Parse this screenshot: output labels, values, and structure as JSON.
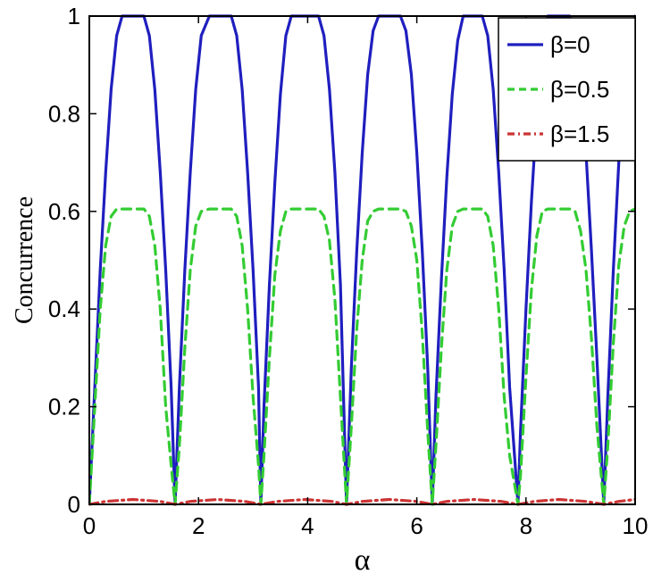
{
  "chart_data": {
    "type": "line",
    "title": "",
    "xlabel": "α",
    "ylabel": "Concurrence",
    "xlim": [
      0,
      10
    ],
    "ylim": [
      0,
      1
    ],
    "xticks": [
      0,
      2,
      4,
      6,
      8,
      10
    ],
    "yticks": [
      0,
      0.2,
      0.4,
      0.6,
      0.8,
      1
    ],
    "xtick_labels": [
      "0",
      "2",
      "4",
      "6",
      "8",
      "10"
    ],
    "ytick_labels": [
      "0",
      "0.2",
      "0.4",
      "0.6",
      "0.8",
      "1"
    ],
    "grid": false,
    "legend_position": "top-right",
    "series": [
      {
        "name": "β=0",
        "color": "#1f1fbf",
        "dash": "solid",
        "x": [
          0,
          0.1,
          0.2,
          0.3,
          0.4,
          0.5,
          0.6,
          0.8,
          1.0,
          1.1,
          1.2,
          1.3,
          1.4,
          1.5,
          1.571,
          1.65,
          1.75,
          1.85,
          1.95,
          2.05,
          2.2,
          2.4,
          2.6,
          2.7,
          2.8,
          2.9,
          3.0,
          3.1,
          3.142,
          3.2,
          3.3,
          3.4,
          3.5,
          3.6,
          3.7,
          3.8,
          4.0,
          4.2,
          4.3,
          4.4,
          4.5,
          4.6,
          4.712,
          4.8,
          4.9,
          5.0,
          5.1,
          5.2,
          5.3,
          5.5,
          5.7,
          5.8,
          5.9,
          6.0,
          6.1,
          6.2,
          6.283,
          6.35,
          6.45,
          6.55,
          6.65,
          6.75,
          6.85,
          7.0,
          7.2,
          7.3,
          7.4,
          7.5,
          7.6,
          7.7,
          7.854,
          7.9,
          8.0,
          8.1,
          8.2,
          8.3,
          8.4,
          8.6,
          8.8,
          8.9,
          9.0,
          9.1,
          9.2,
          9.3,
          9.425,
          9.5,
          9.6,
          9.7,
          9.8,
          9.9,
          10.0
        ],
        "y": [
          0,
          0.24,
          0.48,
          0.68,
          0.85,
          0.96,
          1.0,
          1.0,
          1.0,
          0.96,
          0.85,
          0.68,
          0.48,
          0.24,
          0,
          0.24,
          0.48,
          0.68,
          0.85,
          0.96,
          1.0,
          1.0,
          1.0,
          0.96,
          0.85,
          0.68,
          0.48,
          0.24,
          0,
          0.2,
          0.45,
          0.66,
          0.84,
          0.96,
          1.0,
          1.0,
          1.0,
          1.0,
          0.96,
          0.85,
          0.68,
          0.45,
          0,
          0.28,
          0.52,
          0.72,
          0.88,
          0.97,
          1.0,
          1.0,
          1.0,
          0.97,
          0.88,
          0.72,
          0.52,
          0.28,
          0,
          0.22,
          0.46,
          0.67,
          0.84,
          0.95,
          1.0,
          1.0,
          1.0,
          0.96,
          0.85,
          0.68,
          0.48,
          0.24,
          0,
          0.15,
          0.4,
          0.62,
          0.8,
          0.93,
          1.0,
          1.0,
          1.0,
          0.96,
          0.88,
          0.72,
          0.52,
          0.3,
          0,
          0.22,
          0.48,
          0.7,
          0.87,
          0.97,
          1.0
        ]
      },
      {
        "name": "β=0.5",
        "color": "#33cc33",
        "dash": "dashed",
        "x": [
          0,
          0.1,
          0.2,
          0.3,
          0.4,
          0.5,
          0.6,
          0.8,
          1.0,
          1.1,
          1.2,
          1.3,
          1.4,
          1.5,
          1.571,
          1.65,
          1.75,
          1.85,
          1.95,
          2.05,
          2.2,
          2.4,
          2.6,
          2.7,
          2.8,
          2.9,
          3.0,
          3.1,
          3.142,
          3.2,
          3.3,
          3.4,
          3.5,
          3.6,
          3.7,
          3.8,
          4.0,
          4.2,
          4.3,
          4.4,
          4.5,
          4.6,
          4.712,
          4.8,
          4.9,
          5.0,
          5.1,
          5.2,
          5.3,
          5.5,
          5.7,
          5.8,
          5.9,
          6.0,
          6.1,
          6.2,
          6.283,
          6.35,
          6.45,
          6.55,
          6.65,
          6.75,
          6.85,
          7.0,
          7.2,
          7.3,
          7.4,
          7.5,
          7.6,
          7.7,
          7.854,
          7.9,
          8.0,
          8.1,
          8.2,
          8.3,
          8.4,
          8.6,
          8.8,
          8.9,
          9.0,
          9.1,
          9.2,
          9.3,
          9.425,
          9.5,
          9.6,
          9.7,
          9.8,
          9.9,
          10.0
        ],
        "y": [
          0,
          0.2,
          0.4,
          0.53,
          0.59,
          0.605,
          0.605,
          0.605,
          0.605,
          0.59,
          0.53,
          0.4,
          0.2,
          0.08,
          0,
          0.12,
          0.32,
          0.48,
          0.57,
          0.6,
          0.605,
          0.605,
          0.605,
          0.59,
          0.53,
          0.4,
          0.22,
          0.08,
          0,
          0.1,
          0.3,
          0.47,
          0.56,
          0.6,
          0.605,
          0.605,
          0.605,
          0.605,
          0.59,
          0.54,
          0.42,
          0.22,
          0,
          0.16,
          0.36,
          0.5,
          0.58,
          0.6,
          0.605,
          0.605,
          0.605,
          0.6,
          0.57,
          0.5,
          0.35,
          0.15,
          0,
          0.12,
          0.32,
          0.48,
          0.57,
          0.6,
          0.605,
          0.605,
          0.605,
          0.59,
          0.53,
          0.4,
          0.22,
          0.1,
          0,
          0.06,
          0.26,
          0.44,
          0.55,
          0.6,
          0.605,
          0.605,
          0.605,
          0.6,
          0.56,
          0.48,
          0.34,
          0.16,
          0,
          0.12,
          0.33,
          0.49,
          0.57,
          0.6,
          0.605
        ]
      },
      {
        "name": "β=1.5",
        "color": "#cc3333",
        "dash": "dashdot",
        "x": [
          0,
          0.3,
          0.8,
          1.3,
          1.571,
          1.85,
          2.35,
          2.85,
          3.142,
          3.45,
          3.95,
          4.45,
          4.712,
          5.0,
          5.5,
          6.0,
          6.283,
          6.55,
          7.05,
          7.55,
          7.854,
          8.15,
          8.6,
          9.1,
          9.425,
          9.7,
          10.0
        ],
        "y": [
          0,
          0.006,
          0.01,
          0.006,
          0,
          0.006,
          0.01,
          0.006,
          0,
          0.006,
          0.01,
          0.006,
          0,
          0.006,
          0.01,
          0.006,
          0,
          0.006,
          0.01,
          0.006,
          0,
          0.006,
          0.01,
          0.006,
          0,
          0.006,
          0.01
        ]
      }
    ]
  }
}
